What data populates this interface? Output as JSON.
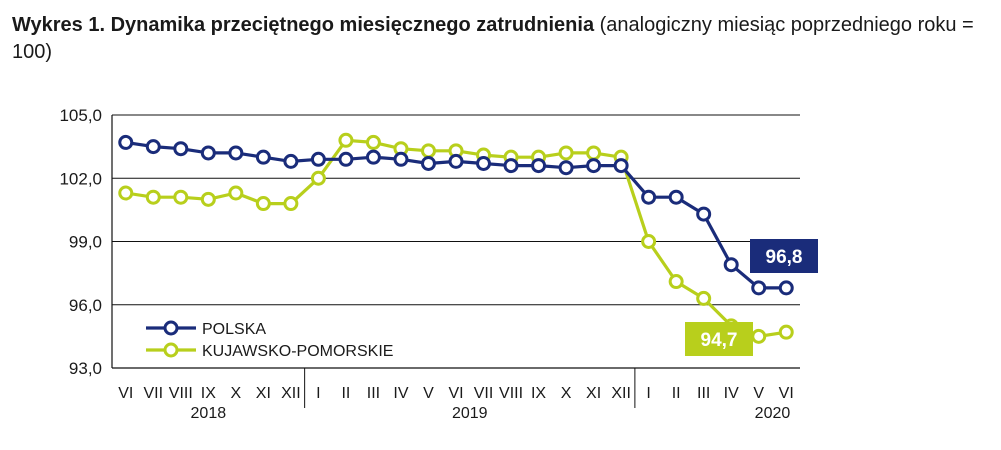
{
  "figure": {
    "title_bold": "Wykres 1. Dynamika przeciętnego miesięcznego zatrudnienia",
    "title_rest": " (analogiczny miesiąc poprzedniego roku = 100)"
  },
  "chart_data": {
    "type": "line",
    "title": "Wykres 1. Dynamika przeciętnego miesięcznego zatrudnienia (analogiczny miesiąc poprzedniego roku = 100)",
    "xlabel": "",
    "ylabel": "",
    "ylim": [
      93.0,
      105.0
    ],
    "yticks": [
      93.0,
      96.0,
      99.0,
      102.0,
      105.0
    ],
    "ytick_labels": [
      "93,0",
      "96,0",
      "99,0",
      "102,0",
      "105,0"
    ],
    "grid": true,
    "legend_position": "bottom-left",
    "categories": [
      "VI",
      "VII",
      "VIII",
      "IX",
      "X",
      "XI",
      "XII",
      "I",
      "II",
      "III",
      "IV",
      "V",
      "VI",
      "VII",
      "VIII",
      "IX",
      "X",
      "XI",
      "XII",
      "I",
      "II",
      "III",
      "IV",
      "V",
      "VI"
    ],
    "years": [
      {
        "label": "2018",
        "from": 0,
        "to": 6
      },
      {
        "label": "2019",
        "from": 7,
        "to": 18
      },
      {
        "label": "2020",
        "from": 19,
        "to": 24
      }
    ],
    "series": [
      {
        "name": "POLSKA",
        "color": "#1a2c7a",
        "values": [
          103.7,
          103.5,
          103.4,
          103.2,
          103.2,
          103.0,
          102.8,
          102.9,
          102.9,
          103.0,
          102.9,
          102.7,
          102.8,
          102.7,
          102.6,
          102.6,
          102.5,
          102.6,
          102.6,
          101.1,
          101.1,
          100.3,
          97.9,
          96.8,
          96.8
        ]
      },
      {
        "name": "KUJAWSKO-POMORSKIE",
        "color": "#b8cf1c",
        "values": [
          101.3,
          101.1,
          101.1,
          101.0,
          101.3,
          100.8,
          100.8,
          102.0,
          103.8,
          103.7,
          103.4,
          103.3,
          103.3,
          103.1,
          103.0,
          103.0,
          103.2,
          103.2,
          103.0,
          99.0,
          97.1,
          96.3,
          95.0,
          94.5,
          94.7
        ]
      }
    ],
    "annotations": [
      {
        "series": "POLSKA",
        "text": "96,8",
        "bg": "#1a2c7a",
        "fg": "#ffffff"
      },
      {
        "series": "KUJAWSKO-POMORSKIE",
        "text": "94,7",
        "bg": "#b8cf1c",
        "fg": "#ffffff"
      }
    ]
  }
}
